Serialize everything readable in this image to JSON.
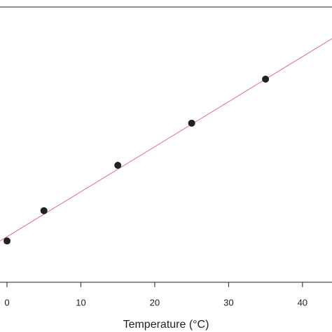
{
  "chart_data": {
    "type": "scatter",
    "x_label": "Temperature (°C)",
    "x": [
      0,
      5,
      15,
      25,
      35
    ],
    "values": [
      15.0,
      26.0,
      42.5,
      57.8,
      73.8
    ],
    "color": "#222222",
    "fit_line": {
      "x": [
        -1,
        44
      ],
      "values": [
        14.9,
        88.5
      ],
      "color": "#e0707c"
    },
    "xlim": [
      -0.95,
      44
    ],
    "ylim": [
      0,
      100
    ],
    "xticks": [
      0,
      10,
      20,
      30,
      40
    ]
  }
}
